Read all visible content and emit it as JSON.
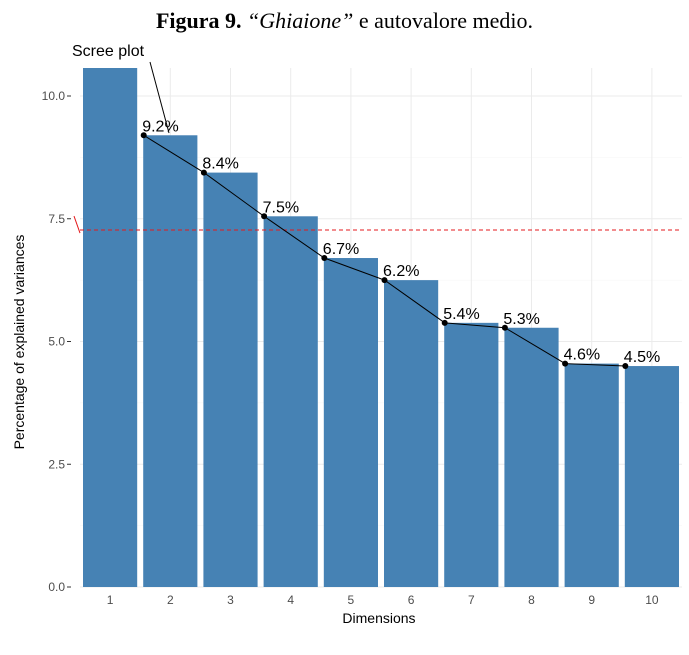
{
  "caption": {
    "label": "Figura 9.",
    "name": "“Ghiaione”",
    "rest": "e autovalore medio."
  },
  "chart_data": {
    "type": "bar",
    "title": "Scree plot",
    "xlabel": "Dimensions",
    "ylabel": "Percentage of explained variances",
    "categories": [
      "1",
      "2",
      "3",
      "4",
      "5",
      "6",
      "7",
      "8",
      "9",
      "10"
    ],
    "values": [
      10.6,
      9.2,
      8.44,
      7.55,
      6.7,
      6.25,
      5.38,
      5.28,
      4.55,
      4.5
    ],
    "labels": [
      "",
      "9.2%",
      "8.4%",
      "7.5%",
      "6.7%",
      "6.2%",
      "5.4%",
      "5.3%",
      "4.6%",
      "4.5%"
    ],
    "yticks": [
      "0.0",
      "2.5",
      "5.0",
      "7.5",
      "10.0"
    ],
    "ytick_values": [
      0,
      2.5,
      5,
      7.5,
      10
    ],
    "ylim": [
      0,
      10.6
    ],
    "bar_color": "#4682B4",
    "line_color": "#000000",
    "reference_line": {
      "value": 7.27,
      "color": "#e41a1c",
      "style": "dashed"
    },
    "grid": true
  }
}
